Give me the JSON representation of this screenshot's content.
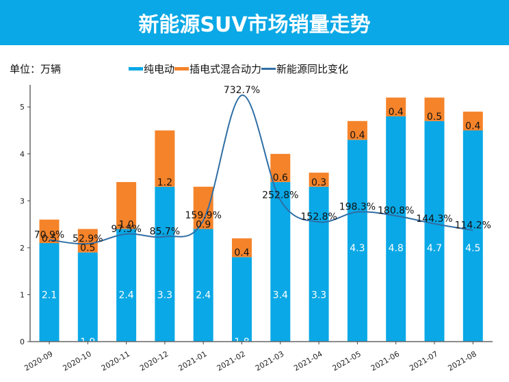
{
  "header": {
    "title": "新能源SUV市场销量走势"
  },
  "unit_label": "单位：万辆",
  "legend": [
    {
      "label": "纯电动",
      "color": "#0aa8e6",
      "kind": "bar"
    },
    {
      "label": "插电式混合动力",
      "color": "#f5832a",
      "kind": "bar"
    },
    {
      "label": "新能源同比变化",
      "color": "#2f6ea5",
      "kind": "line"
    }
  ],
  "chart_data": {
    "type": "bar",
    "stacked": true,
    "title": "新能源SUV市场销量走势",
    "xlabel": "",
    "ylabel": "单位：万辆",
    "ylim": [
      0,
      5.47
    ],
    "yticks": [
      0,
      1,
      2,
      3,
      4,
      5
    ],
    "y2lim": [
      -395,
      780
    ],
    "legend_position": "top-center",
    "grid": false,
    "categories": [
      "2020-09",
      "2020-10",
      "2020-11",
      "2020-12",
      "2021-01",
      "2021-02",
      "2021-03",
      "2021-04",
      "2021-05",
      "2021-06",
      "2021-07",
      "2021-08"
    ],
    "series": [
      {
        "name": "纯电动",
        "type": "bar",
        "color": "#0aa8e6",
        "values": [
          2.1,
          1.9,
          2.4,
          3.3,
          2.4,
          1.8,
          3.4,
          3.3,
          4.3,
          4.8,
          4.7,
          4.5
        ]
      },
      {
        "name": "插电式混合动力",
        "type": "bar",
        "color": "#f5832a",
        "values": [
          0.5,
          0.5,
          1.0,
          1.2,
          0.9,
          0.4,
          0.6,
          0.3,
          0.4,
          0.4,
          0.5,
          0.4
        ]
      },
      {
        "name": "新能源同比变化",
        "type": "line",
        "axis": "secondary",
        "color": "#2f6ea5",
        "values": [
          70.9,
          52.9,
          97.5,
          85.7,
          159.9,
          732.7,
          252.8,
          152.8,
          198.3,
          180.8,
          144.3,
          114.2
        ],
        "labels": [
          "70.9%",
          "52.9%",
          "97.5%",
          "85.7%",
          "159.9%",
          "732.7%",
          "252.8%",
          "152.8%",
          "198.3%",
          "180.8%",
          "144.3%",
          "114.2%"
        ]
      }
    ]
  }
}
